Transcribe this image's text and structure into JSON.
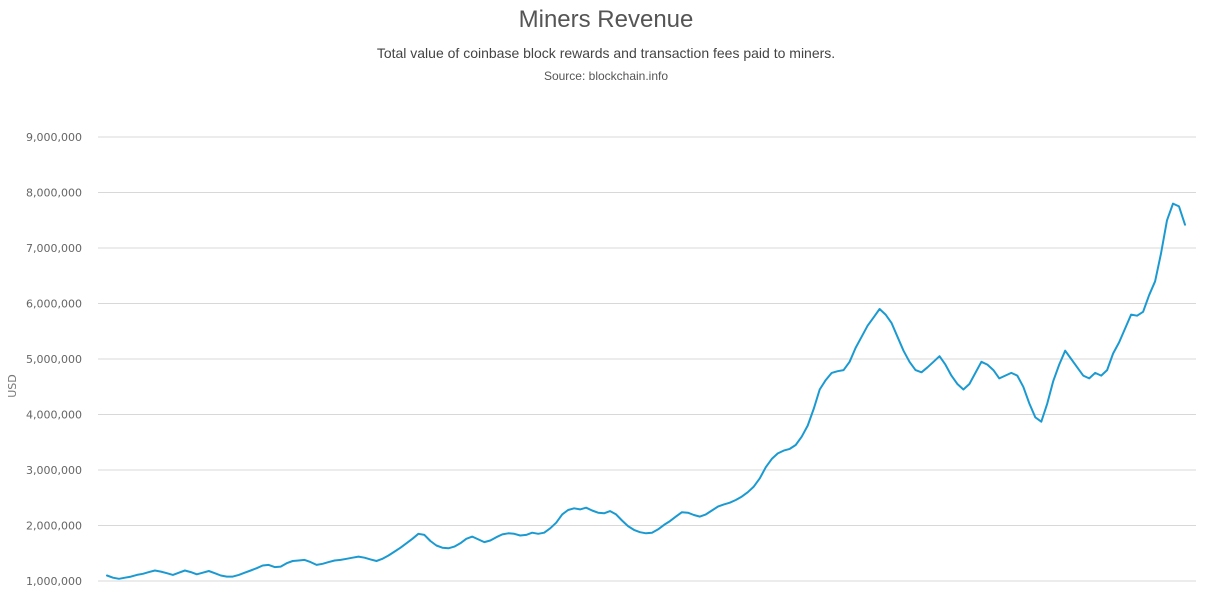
{
  "header": {
    "title": "Miners Revenue",
    "subtitle": "Total value of coinbase block rewards and transaction fees paid to miners.",
    "source": "Source: blockchain.info"
  },
  "chart_data": {
    "type": "line",
    "title": "Miners Revenue",
    "subtitle": "Total value of coinbase block rewards and transaction fees paid to miners.",
    "xlabel": "",
    "ylabel": "USD",
    "ylim": [
      1000000,
      9000000
    ],
    "yticks": [
      1000000,
      2000000,
      3000000,
      4000000,
      5000000,
      6000000,
      7000000,
      8000000,
      9000000
    ],
    "ytick_labels": [
      "1,000,000",
      "2,000,000",
      "3,000,000",
      "4,000,000",
      "5,000,000",
      "6,000,000",
      "7,000,000",
      "8,000,000",
      "9,000,000"
    ],
    "grid": true,
    "legend": "none",
    "color": "#1b9ad2",
    "series": [
      {
        "values": [
          1100000,
          1060000,
          1040000,
          1060000,
          1080000,
          1110000,
          1130000,
          1160000,
          1190000,
          1170000,
          1140000,
          1110000,
          1150000,
          1190000,
          1160000,
          1120000,
          1150000,
          1180000,
          1140000,
          1100000,
          1080000,
          1080000,
          1110000,
          1150000,
          1190000,
          1230000,
          1280000,
          1290000,
          1250000,
          1260000,
          1320000,
          1360000,
          1370000,
          1380000,
          1340000,
          1290000,
          1310000,
          1340000,
          1370000,
          1380000,
          1400000,
          1420000,
          1440000,
          1420000,
          1390000,
          1360000,
          1400000,
          1460000,
          1530000,
          1600000,
          1680000,
          1760000,
          1850000,
          1830000,
          1720000,
          1640000,
          1600000,
          1590000,
          1620000,
          1680000,
          1760000,
          1800000,
          1750000,
          1700000,
          1730000,
          1790000,
          1840000,
          1860000,
          1850000,
          1820000,
          1830000,
          1870000,
          1850000,
          1870000,
          1950000,
          2050000,
          2200000,
          2280000,
          2310000,
          2290000,
          2320000,
          2270000,
          2230000,
          2220000,
          2260000,
          2200000,
          2090000,
          1990000,
          1920000,
          1880000,
          1860000,
          1870000,
          1930000,
          2010000,
          2080000,
          2160000,
          2240000,
          2230000,
          2190000,
          2160000,
          2200000,
          2270000,
          2340000,
          2380000,
          2410000,
          2460000,
          2520000,
          2600000,
          2700000,
          2850000,
          3050000,
          3200000,
          3300000,
          3350000,
          3380000,
          3450000,
          3600000,
          3800000,
          4100000,
          4450000,
          4620000,
          4750000,
          4780000,
          4800000,
          4950000,
          5200000,
          5400000,
          5600000,
          5750000,
          5900000,
          5800000,
          5650000,
          5400000,
          5150000,
          4950000,
          4800000,
          4760000,
          4850000,
          4950000,
          5050000,
          4900000,
          4700000,
          4550000,
          4450000,
          4550000,
          4750000,
          4950000,
          4900000,
          4800000,
          4650000,
          4700000,
          4750000,
          4700000,
          4500000,
          4200000,
          3950000,
          3870000,
          4200000,
          4600000,
          4900000,
          5150000,
          5000000,
          4850000,
          4700000,
          4650000,
          4750000,
          4700000,
          4800000,
          5100000,
          5300000,
          5550000,
          5800000,
          5780000,
          5850000,
          6150000,
          6400000,
          6900000,
          7500000,
          7800000,
          7750000,
          7420000
        ]
      }
    ]
  }
}
